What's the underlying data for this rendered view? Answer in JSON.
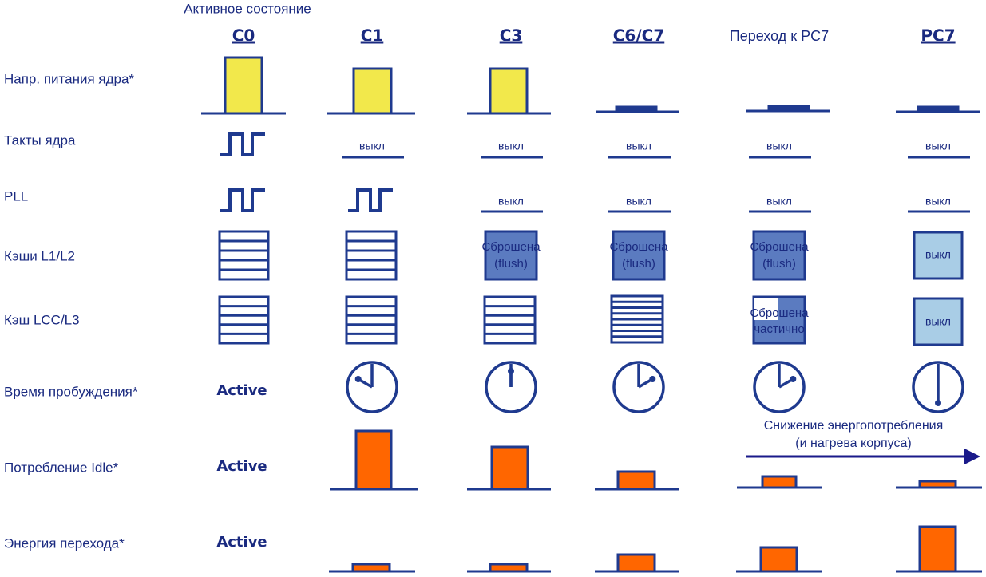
{
  "header": {
    "caption": "Активное состояние"
  },
  "columns": [
    "C0",
    "C1",
    "C3",
    "C6/C7",
    "Переход к PC7",
    "PC7"
  ],
  "rows": [
    "Напр. питания ядра*",
    "Такты ядра",
    "PLL",
    "Кэши L1/L2",
    "Кэш LCC/L3",
    "Время пробуждения*",
    "Потребление Idle*",
    "Энергия перехода*"
  ],
  "core_clocks_off": [
    "выкл",
    "выкл",
    "выкл",
    "выкл",
    "выкл"
  ],
  "pll_off": [
    "выкл",
    "выкл",
    "выкл",
    "выкл"
  ],
  "l1l2": {
    "flushed": [
      [
        "Сброшена",
        "(flush)"
      ],
      [
        "Сброшена",
        "(flush)"
      ],
      [
        "Сброшена",
        "(flush)"
      ]
    ],
    "off": "выкл"
  },
  "llc": {
    "partial": [
      "Сброшена",
      "частично"
    ],
    "off": "выкл"
  },
  "active": [
    "Active",
    "Active",
    "Active"
  ],
  "arrow": [
    "Снижение энергопотребления",
    "(и нагрева корпуса)"
  ]
}
